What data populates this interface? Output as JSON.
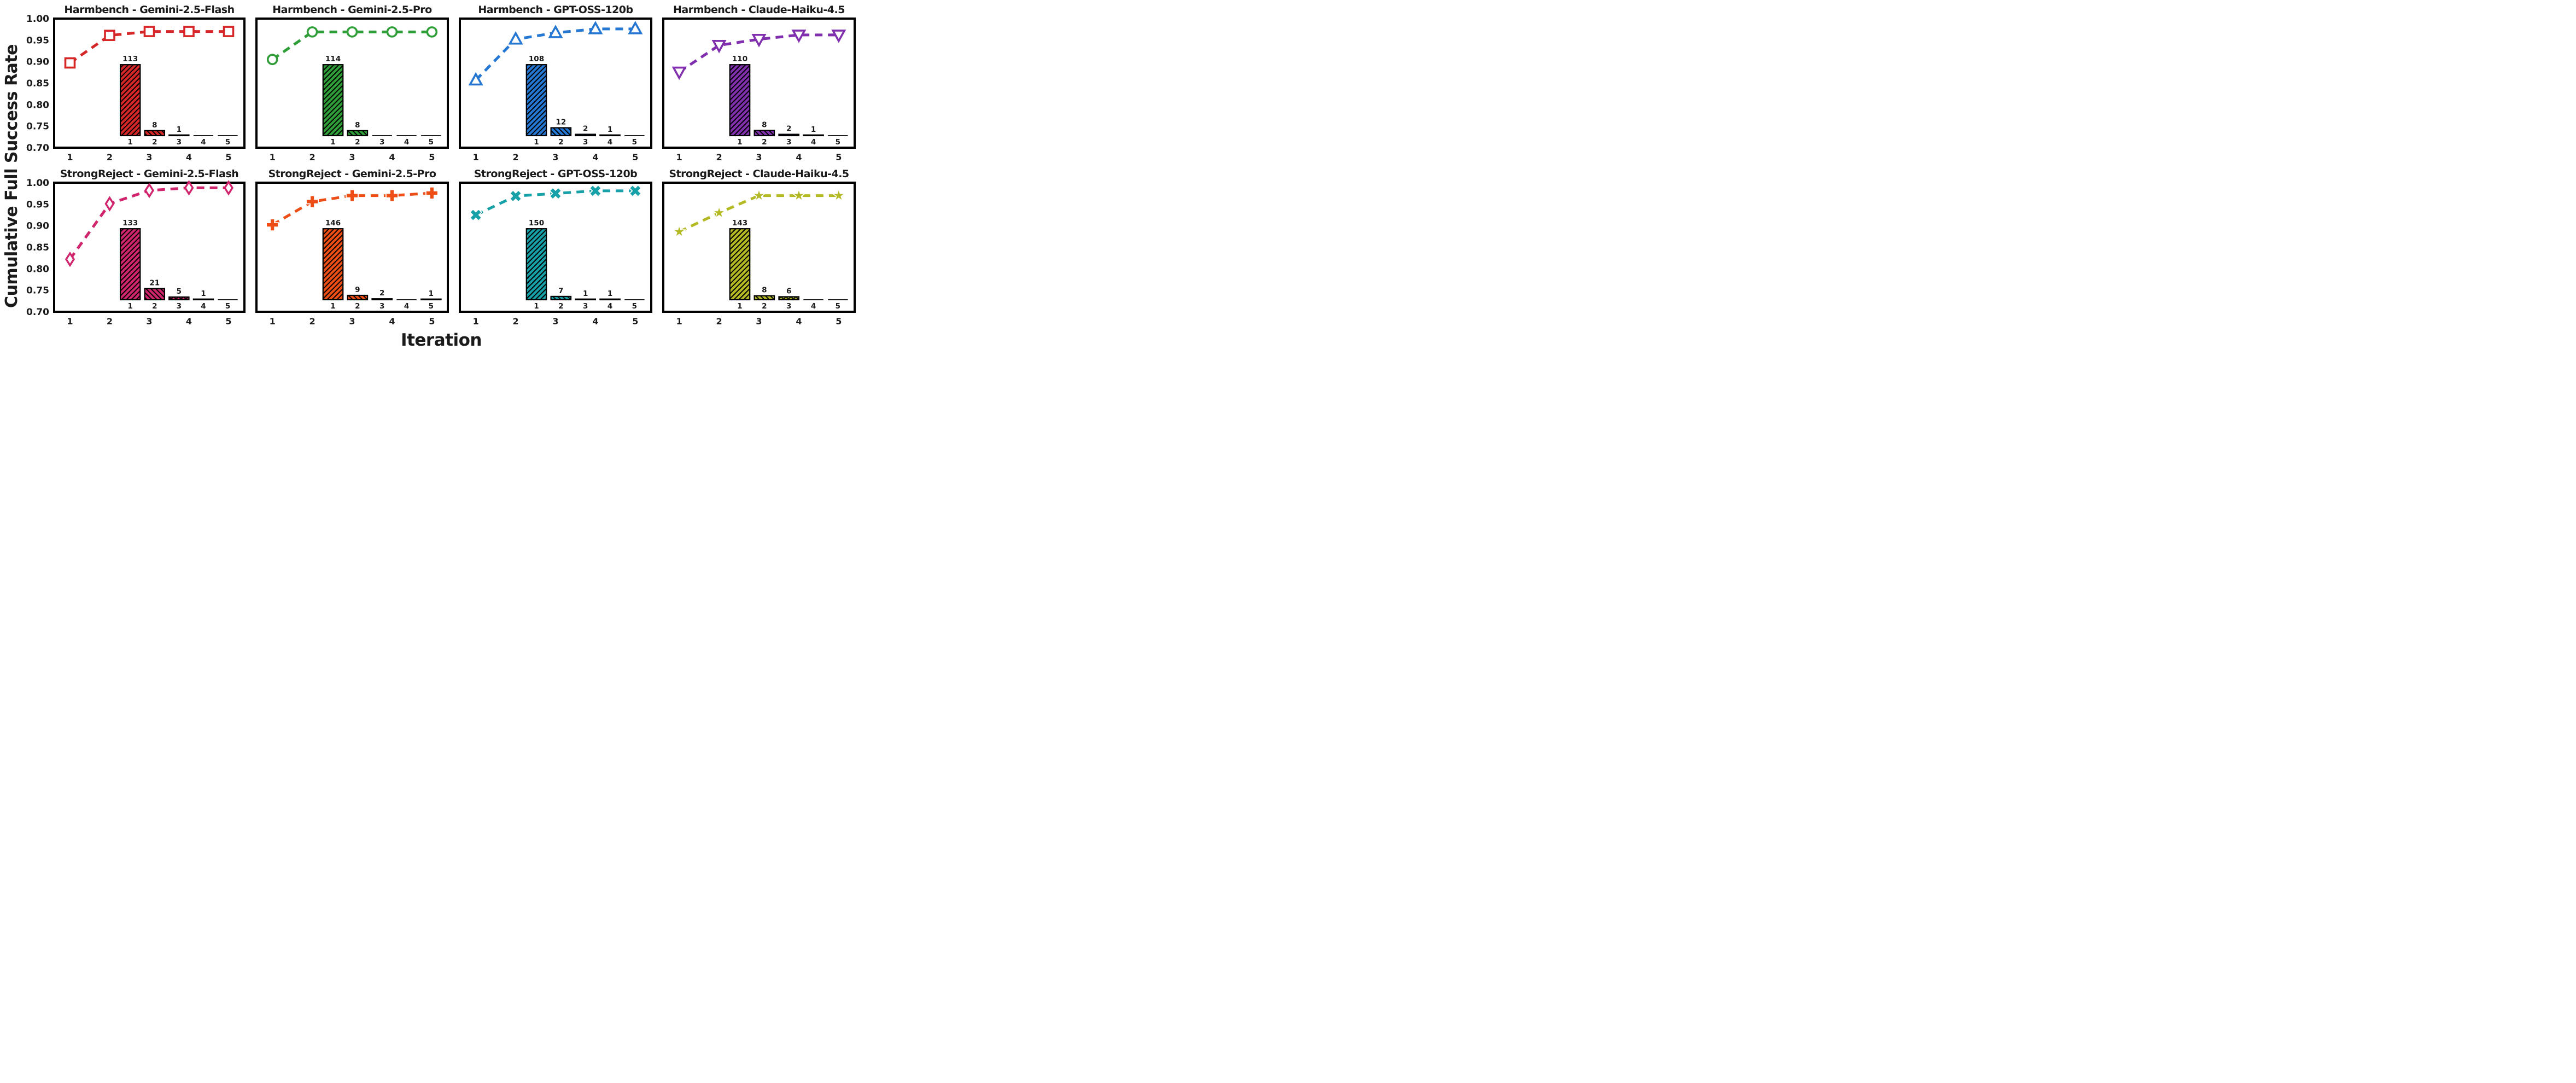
{
  "figure": {
    "ylabel": "Cumulative Full Success Rate",
    "xlabel": "Iteration",
    "ylim": [
      0.7,
      1.0
    ],
    "yticks": [
      "1.00",
      "0.95",
      "0.90",
      "0.85",
      "0.80",
      "0.75",
      "0.70"
    ],
    "xticks": [
      "1",
      "2",
      "3",
      "4",
      "5"
    ],
    "grid": "off",
    "rows": 2,
    "cols": 4
  },
  "chart_data": [
    {
      "type": "line",
      "title": "Harmbench - Gemini-2.5-Flash",
      "color": "#d62728",
      "marker": "square-open",
      "x": [
        1,
        2,
        3,
        4,
        5
      ],
      "y": [
        0.897,
        0.961,
        0.97,
        0.97,
        0.97
      ],
      "inset_bars": {
        "type": "bar",
        "categories": [
          "1",
          "2",
          "3",
          "4",
          "5"
        ],
        "values": [
          113,
          8,
          1,
          0,
          0
        ]
      }
    },
    {
      "type": "line",
      "title": "Harmbench - Gemini-2.5-Pro",
      "color": "#2f9e38",
      "marker": "circle-open",
      "x": [
        1,
        2,
        3,
        4,
        5
      ],
      "y": [
        0.905,
        0.969,
        0.969,
        0.969,
        0.969
      ],
      "inset_bars": {
        "type": "bar",
        "categories": [
          "1",
          "2",
          "3",
          "4",
          "5"
        ],
        "values": [
          114,
          8,
          0,
          0,
          0
        ]
      }
    },
    {
      "type": "line",
      "title": "Harmbench - GPT-OSS-120b",
      "color": "#2577d4",
      "marker": "triangle-up-open",
      "x": [
        1,
        2,
        3,
        4,
        5
      ],
      "y": [
        0.857,
        0.952,
        0.967,
        0.976,
        0.976
      ],
      "inset_bars": {
        "type": "bar",
        "categories": [
          "1",
          "2",
          "3",
          "4",
          "5"
        ],
        "values": [
          108,
          12,
          2,
          1,
          0
        ]
      }
    },
    {
      "type": "line",
      "title": "Harmbench - Claude-Haiku-4.5",
      "color": "#8030ad",
      "marker": "triangle-down-open",
      "x": [
        1,
        2,
        3,
        4,
        5
      ],
      "y": [
        0.876,
        0.938,
        0.952,
        0.962,
        0.962
      ],
      "inset_bars": {
        "type": "bar",
        "categories": [
          "1",
          "2",
          "3",
          "4",
          "5"
        ],
        "values": [
          110,
          8,
          2,
          1,
          0
        ]
      }
    },
    {
      "type": "line",
      "title": "StrongReject - Gemini-2.5-Flash",
      "color": "#d0246c",
      "marker": "diamond-open",
      "x": [
        1,
        2,
        3,
        4,
        5
      ],
      "y": [
        0.822,
        0.951,
        0.982,
        0.988,
        0.988
      ],
      "inset_bars": {
        "type": "bar",
        "categories": [
          "1",
          "2",
          "3",
          "4",
          "5"
        ],
        "values": [
          133,
          21,
          5,
          1,
          0
        ]
      }
    },
    {
      "type": "line",
      "title": "StrongReject - Gemini-2.5-Pro",
      "color": "#ee4d16",
      "marker": "plus-filled",
      "x": [
        1,
        2,
        3,
        4,
        5
      ],
      "y": [
        0.902,
        0.956,
        0.97,
        0.97,
        0.976
      ],
      "inset_bars": {
        "type": "bar",
        "categories": [
          "1",
          "2",
          "3",
          "4",
          "5"
        ],
        "values": [
          146,
          9,
          2,
          0,
          1
        ]
      }
    },
    {
      "type": "line",
      "title": "StrongReject - GPT-OSS-120b",
      "color": "#16a0a8",
      "marker": "x-filled",
      "x": [
        1,
        2,
        3,
        4,
        5
      ],
      "y": [
        0.925,
        0.969,
        0.975,
        0.981,
        0.981
      ],
      "inset_bars": {
        "type": "bar",
        "categories": [
          "1",
          "2",
          "3",
          "4",
          "5"
        ],
        "values": [
          150,
          7,
          1,
          1,
          0
        ]
      }
    },
    {
      "type": "line",
      "title": "StrongReject - Claude-Haiku-4.5",
      "color": "#b4ba24",
      "marker": "star-filled",
      "x": [
        1,
        2,
        3,
        4,
        5
      ],
      "y": [
        0.886,
        0.93,
        0.97,
        0.97,
        0.97
      ],
      "inset_bars": {
        "type": "bar",
        "categories": [
          "1",
          "2",
          "3",
          "4",
          "5"
        ],
        "values": [
          143,
          8,
          6,
          0,
          0
        ]
      }
    }
  ]
}
